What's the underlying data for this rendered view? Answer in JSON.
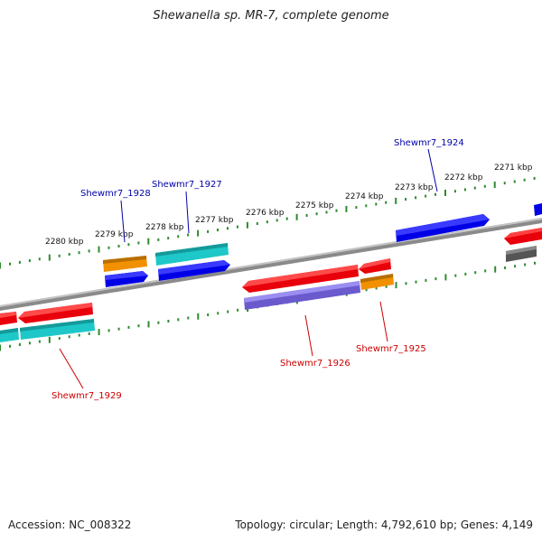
{
  "title": "Shewanella sp. MR-7, complete genome",
  "accession": "Accession: NC_008322",
  "summary": "Topology: circular; Length: 4,792,610 bp; Genes: 4,149",
  "colors": {
    "backbone": "#7f7f7f",
    "ticks": "#2e8b2e",
    "red": "#e8000a",
    "blue": "#0000e6",
    "cyan": "#1fc8c8",
    "orange": "#f29100",
    "purple": "#6a5acd",
    "gray": "#555555",
    "label_blue": "#0000aa",
    "label_red": "#cc0000"
  },
  "scale_labels": [
    "2280 kbp",
    "2279 kbp",
    "2278 kbp",
    "2277 kbp",
    "2276 kbp",
    "2275 kbp",
    "2274 kbp",
    "2273 kbp",
    "2272 kbp",
    "2271 kbp"
  ],
  "gene_labels": {
    "g1928": "Shewmr7_1928",
    "g1927": "Shewmr7_1927",
    "g1924": "Shewmr7_1924",
    "g1926": "Shewmr7_1926",
    "g1925": "Shewmr7_1925",
    "g1929": "Shewmr7_1929"
  }
}
